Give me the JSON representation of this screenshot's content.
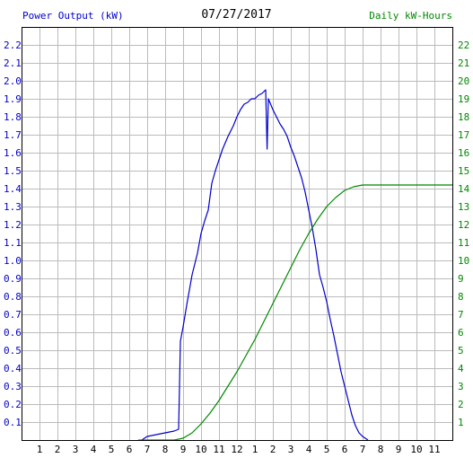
{
  "header": {
    "left_title": "Power Output (kW)",
    "date": "07/27/2017",
    "right_title": "Daily kW-Hours"
  },
  "colors": {
    "power": "#0000cc",
    "energy": "#008800",
    "grid": "#bbbbbb",
    "axis": "#000000"
  },
  "chart_data": {
    "type": "line",
    "title": "07/27/2017",
    "x_ticks": [
      "1",
      "2",
      "3",
      "4",
      "5",
      "6",
      "7",
      "8",
      "9",
      "10",
      "11",
      "12",
      "1",
      "2",
      "3",
      "4",
      "5",
      "6",
      "7",
      "8",
      "9",
      "10",
      "11"
    ],
    "xlim": [
      0,
      24
    ],
    "y_left": {
      "label": "Power Output (kW)",
      "lim": [
        0,
        2.3
      ],
      "ticks": [
        "0.1",
        "0.2",
        "0.3",
        "0.4",
        "0.5",
        "0.6",
        "0.7",
        "0.8",
        "0.9",
        "1.0",
        "1.1",
        "1.2",
        "1.3",
        "1.4",
        "1.5",
        "1.6",
        "1.7",
        "1.8",
        "1.9",
        "2.0",
        "2.1",
        "2.2"
      ]
    },
    "y_right": {
      "label": "Daily kW-Hours",
      "lim": [
        0,
        23
      ],
      "ticks": [
        "1",
        "2",
        "3",
        "4",
        "5",
        "6",
        "7",
        "8",
        "9",
        "10",
        "11",
        "12",
        "13",
        "14",
        "15",
        "16",
        "17",
        "18",
        "19",
        "20",
        "21",
        "22"
      ]
    },
    "grid": true,
    "series": [
      {
        "name": "Power Output (kW)",
        "axis": "left",
        "points": [
          [
            6.7,
            0.0
          ],
          [
            7.0,
            0.02
          ],
          [
            7.5,
            0.03
          ],
          [
            8.0,
            0.04
          ],
          [
            8.5,
            0.05
          ],
          [
            8.75,
            0.06
          ],
          [
            8.8,
            0.3
          ],
          [
            8.85,
            0.55
          ],
          [
            9.0,
            0.63
          ],
          [
            9.2,
            0.75
          ],
          [
            9.5,
            0.92
          ],
          [
            9.8,
            1.04
          ],
          [
            10.0,
            1.15
          ],
          [
            10.2,
            1.22
          ],
          [
            10.4,
            1.28
          ],
          [
            10.6,
            1.43
          ],
          [
            10.8,
            1.5
          ],
          [
            11.0,
            1.56
          ],
          [
            11.2,
            1.62
          ],
          [
            11.5,
            1.69
          ],
          [
            11.8,
            1.75
          ],
          [
            12.0,
            1.8
          ],
          [
            12.2,
            1.84
          ],
          [
            12.4,
            1.87
          ],
          [
            12.6,
            1.88
          ],
          [
            12.8,
            1.9
          ],
          [
            13.0,
            1.9
          ],
          [
            13.2,
            1.92
          ],
          [
            13.4,
            1.93
          ],
          [
            13.6,
            1.95
          ],
          [
            13.68,
            1.62
          ],
          [
            13.75,
            1.9
          ],
          [
            14.0,
            1.84
          ],
          [
            14.2,
            1.8
          ],
          [
            14.4,
            1.76
          ],
          [
            14.6,
            1.73
          ],
          [
            14.8,
            1.69
          ],
          [
            15.0,
            1.63
          ],
          [
            15.2,
            1.58
          ],
          [
            15.4,
            1.52
          ],
          [
            15.6,
            1.46
          ],
          [
            15.8,
            1.38
          ],
          [
            16.0,
            1.28
          ],
          [
            16.2,
            1.18
          ],
          [
            16.4,
            1.06
          ],
          [
            16.6,
            0.92
          ],
          [
            16.8,
            0.85
          ],
          [
            17.0,
            0.77
          ],
          [
            17.2,
            0.67
          ],
          [
            17.4,
            0.58
          ],
          [
            17.6,
            0.48
          ],
          [
            17.8,
            0.38
          ],
          [
            18.0,
            0.3
          ],
          [
            18.2,
            0.22
          ],
          [
            18.4,
            0.14
          ],
          [
            18.6,
            0.08
          ],
          [
            18.8,
            0.04
          ],
          [
            19.0,
            0.02
          ],
          [
            19.3,
            0.0
          ]
        ]
      },
      {
        "name": "Daily kW-Hours",
        "axis": "right",
        "points": [
          [
            6.5,
            0.0
          ],
          [
            8.5,
            0.0
          ],
          [
            9.0,
            0.1
          ],
          [
            9.5,
            0.4
          ],
          [
            10.0,
            0.9
          ],
          [
            10.5,
            1.5
          ],
          [
            11.0,
            2.2
          ],
          [
            11.5,
            3.0
          ],
          [
            12.0,
            3.8
          ],
          [
            12.5,
            4.7
          ],
          [
            13.0,
            5.6
          ],
          [
            13.5,
            6.6
          ],
          [
            14.0,
            7.6
          ],
          [
            14.5,
            8.6
          ],
          [
            15.0,
            9.6
          ],
          [
            15.5,
            10.6
          ],
          [
            16.0,
            11.5
          ],
          [
            16.5,
            12.3
          ],
          [
            17.0,
            13.0
          ],
          [
            17.5,
            13.5
          ],
          [
            18.0,
            13.9
          ],
          [
            18.5,
            14.1
          ],
          [
            19.0,
            14.2
          ],
          [
            24.0,
            14.2
          ]
        ]
      }
    ]
  }
}
